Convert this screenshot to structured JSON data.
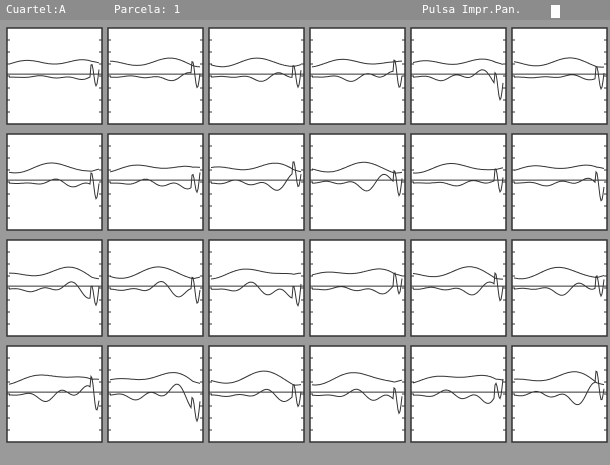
{
  "status_bar": {
    "cuartel": "Cuartel:A",
    "parcela": "Parcela: 1",
    "prompt": "Pulsa Impr.Pan."
  }
}
